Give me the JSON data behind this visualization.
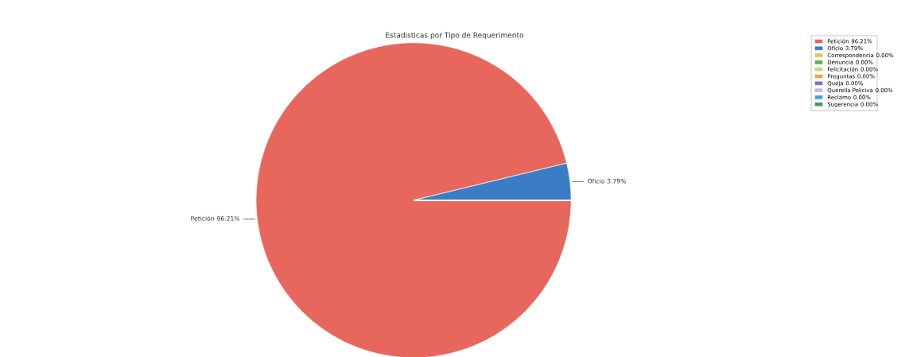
{
  "chart_data": {
    "type": "pie",
    "title": "Estadisticas por Tipo de Requerimento",
    "categories": [
      "Petición",
      "Oficio",
      "Correspondencia",
      "Denuncia",
      "Felicitación",
      "Preguntas",
      "Queja",
      "Querella Policiva",
      "Reclamo",
      "Sugerencia"
    ],
    "values": [
      96.21,
      3.79,
      0,
      0,
      0,
      0,
      0,
      0,
      0,
      0
    ],
    "colors": [
      "#e8675c",
      "#3b7dc4",
      "#e6c34f",
      "#5fae4f",
      "#b9d98a",
      "#f2a33a",
      "#8a6cc0",
      "#c7b3e3",
      "#3ba3d6",
      "#3f9c6e"
    ],
    "value_labels": [
      "96.21%",
      "3.79%",
      "0.00%",
      "0.00%",
      "0.00%",
      "0.00%",
      "0.00%",
      "0.00%",
      "0.00%",
      "0.00%"
    ],
    "legend": "top right"
  }
}
